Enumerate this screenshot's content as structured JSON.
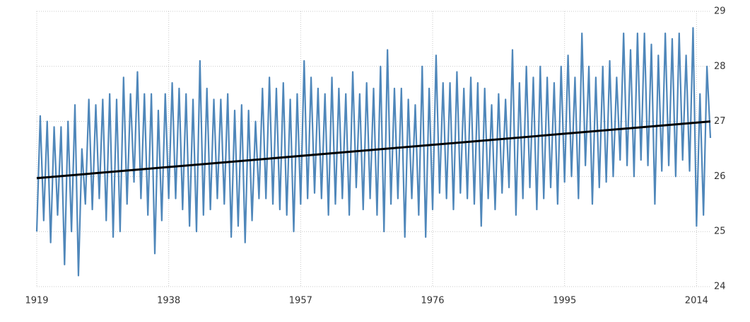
{
  "chart_data": {
    "type": "line",
    "x": [
      1919,
      1919.5,
      1920,
      1920.5,
      1921,
      1921.5,
      1922,
      1922.5,
      1923,
      1923.5,
      1924,
      1924.5,
      1925,
      1925.5,
      1926,
      1926.5,
      1927,
      1927.5,
      1928,
      1928.5,
      1929,
      1929.5,
      1930,
      1930.5,
      1931,
      1931.5,
      1932,
      1932.5,
      1933,
      1933.5,
      1934,
      1934.5,
      1935,
      1935.5,
      1936,
      1936.5,
      1937,
      1937.5,
      1938,
      1938.5,
      1939,
      1939.5,
      1940,
      1940.5,
      1941,
      1941.5,
      1942,
      1942.5,
      1943,
      1943.5,
      1944,
      1944.5,
      1945,
      1945.5,
      1946,
      1946.5,
      1947,
      1947.5,
      1948,
      1948.5,
      1949,
      1949.5,
      1950,
      1950.5,
      1951,
      1951.5,
      1952,
      1952.5,
      1953,
      1953.5,
      1954,
      1954.5,
      1955,
      1955.5,
      1956,
      1956.5,
      1957,
      1957.5,
      1958,
      1958.5,
      1959,
      1959.5,
      1960,
      1960.5,
      1961,
      1961.5,
      1962,
      1962.5,
      1963,
      1963.5,
      1964,
      1964.5,
      1965,
      1965.5,
      1966,
      1966.5,
      1967,
      1967.5,
      1968,
      1968.5,
      1969,
      1969.5,
      1970,
      1970.5,
      1971,
      1971.5,
      1972,
      1972.5,
      1973,
      1973.5,
      1974,
      1974.5,
      1975,
      1975.5,
      1976,
      1976.5,
      1977,
      1977.5,
      1978,
      1978.5,
      1979,
      1979.5,
      1980,
      1980.5,
      1981,
      1981.5,
      1982,
      1982.5,
      1983,
      1983.5,
      1984,
      1984.5,
      1985,
      1985.5,
      1986,
      1986.5,
      1987,
      1987.5,
      1988,
      1988.5,
      1989,
      1989.5,
      1990,
      1990.5,
      1991,
      1991.5,
      1992,
      1992.5,
      1993,
      1993.5,
      1994,
      1994.5,
      1995,
      1995.5,
      1996,
      1996.5,
      1997,
      1997.5,
      1998,
      1998.5,
      1999,
      1999.5,
      2000,
      2000.5,
      2001,
      2001.5,
      2002,
      2002.5,
      2003,
      2003.5,
      2004,
      2004.5,
      2005,
      2005.5,
      2006,
      2006.5,
      2007,
      2007.5,
      2008,
      2008.5,
      2009,
      2009.5,
      2010,
      2010.5,
      2011,
      2011.5,
      2012,
      2012.5,
      2013,
      2013.5,
      2014,
      2014.5,
      2015,
      2015.5,
      2016
    ],
    "series": [
      {
        "color": "#4f87ba",
        "values": [
          25.0,
          27.1,
          25.2,
          27.0,
          24.8,
          26.9,
          25.3,
          26.9,
          24.4,
          27.0,
          25.0,
          27.3,
          24.2,
          26.5,
          25.5,
          27.4,
          25.4,
          27.3,
          25.6,
          27.4,
          25.2,
          27.5,
          24.9,
          27.4,
          25.0,
          27.8,
          25.5,
          27.5,
          25.9,
          27.9,
          25.6,
          27.5,
          25.3,
          27.5,
          24.6,
          27.2,
          25.2,
          27.5,
          25.6,
          27.7,
          25.6,
          27.6,
          25.4,
          27.5,
          25.1,
          27.4,
          25.0,
          28.1,
          25.3,
          27.6,
          25.4,
          27.4,
          25.6,
          27.4,
          25.5,
          27.5,
          24.9,
          27.2,
          25.1,
          27.3,
          24.8,
          27.2,
          25.2,
          27.0,
          25.6,
          27.6,
          25.6,
          27.8,
          25.5,
          27.6,
          25.4,
          27.7,
          25.3,
          27.4,
          25.0,
          27.5,
          25.5,
          28.1,
          25.6,
          27.8,
          25.7,
          27.6,
          25.6,
          27.5,
          25.3,
          27.8,
          25.5,
          27.6,
          25.6,
          27.5,
          25.3,
          27.9,
          25.8,
          27.5,
          25.4,
          27.7,
          25.6,
          27.6,
          25.3,
          28.0,
          25.0,
          28.3,
          25.5,
          27.6,
          25.6,
          27.6,
          24.9,
          27.4,
          25.6,
          27.3,
          25.3,
          28.0,
          24.9,
          27.6,
          25.4,
          28.2,
          25.7,
          27.7,
          25.6,
          27.7,
          25.4,
          27.9,
          25.7,
          27.6,
          25.6,
          27.8,
          25.5,
          27.7,
          25.1,
          27.6,
          25.6,
          27.3,
          25.4,
          27.5,
          25.7,
          27.4,
          25.8,
          28.3,
          25.3,
          27.7,
          25.6,
          28.0,
          25.8,
          27.8,
          25.4,
          28.0,
          25.6,
          27.8,
          25.8,
          27.7,
          25.5,
          28.0,
          25.9,
          28.2,
          26.0,
          27.8,
          25.6,
          28.6,
          26.2,
          28.0,
          25.5,
          27.8,
          25.8,
          28.0,
          25.9,
          28.1,
          26.0,
          27.8,
          26.3,
          28.6,
          26.2,
          28.3,
          26.0,
          28.6,
          26.3,
          28.6,
          26.2,
          28.4,
          25.5,
          28.2,
          26.1,
          28.6,
          26.2,
          28.5,
          26.0,
          28.6,
          26.3,
          28.2,
          26.1,
          28.7,
          25.1,
          27.5,
          25.3,
          28.0,
          26.7
        ]
      },
      {
        "color": "#000000",
        "x": [
          1919,
          2016
        ],
        "values": [
          25.97,
          27.0
        ]
      }
    ],
    "xlim": [
      1919,
      2016
    ],
    "ylim": [
      24,
      29
    ],
    "xticks": [
      1919,
      1938,
      1957,
      1976,
      1995,
      2014
    ],
    "yticks": [
      24,
      25,
      26,
      27,
      28,
      29
    ],
    "grid": true
  }
}
